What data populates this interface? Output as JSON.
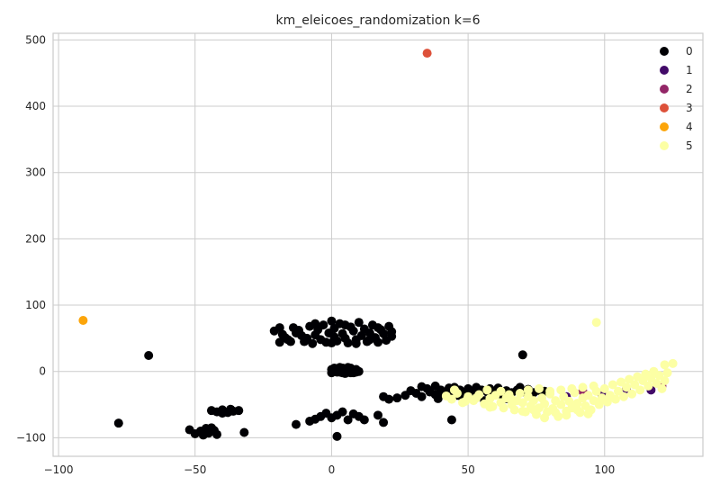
{
  "chart_data": {
    "type": "scatter",
    "title": "km_eleicoes_randomization k=6",
    "xlabel": "",
    "ylabel": "",
    "xlim": [
      -102,
      136
    ],
    "ylim": [
      -128,
      510
    ],
    "x_ticks": [
      -100,
      -50,
      0,
      50,
      100
    ],
    "x_tick_labels": [
      "−100",
      "−50",
      "0",
      "50",
      "100"
    ],
    "y_ticks": [
      -100,
      0,
      100,
      200,
      300,
      400,
      500
    ],
    "y_tick_labels": [
      "−100",
      "0",
      "100",
      "200",
      "300",
      "400",
      "500"
    ],
    "grid": true,
    "legend_position": "top-right",
    "series": [
      {
        "name": "0",
        "color": "#000004",
        "points": [
          [
            -67,
            24
          ],
          [
            70,
            25
          ],
          [
            -78,
            -78
          ],
          [
            2,
            -98
          ],
          [
            44,
            -73
          ],
          [
            -32,
            -92
          ],
          [
            -52,
            -88
          ],
          [
            -50,
            -94
          ],
          [
            -48,
            -90
          ],
          [
            -46,
            -86
          ],
          [
            -45,
            -93
          ],
          [
            -43,
            -89
          ],
          [
            -42,
            -95
          ],
          [
            -44,
            -85
          ],
          [
            -47,
            -96
          ],
          [
            -44,
            -59
          ],
          [
            -42,
            -61
          ],
          [
            -40,
            -58
          ],
          [
            -38,
            -62
          ],
          [
            -36,
            -60
          ],
          [
            -34,
            -59
          ],
          [
            -40,
            -63
          ],
          [
            -37,
            -57
          ],
          [
            -13,
            -80
          ],
          [
            -8,
            -75
          ],
          [
            -6,
            -72
          ],
          [
            -4,
            -68
          ],
          [
            -2,
            -63
          ],
          [
            0,
            -70
          ],
          [
            2,
            -66
          ],
          [
            4,
            -61
          ],
          [
            6,
            -73
          ],
          [
            8,
            -64
          ],
          [
            10,
            -68
          ],
          [
            12,
            -73
          ],
          [
            17,
            -66
          ],
          [
            19,
            -77
          ],
          [
            0,
            3
          ],
          [
            1,
            1
          ],
          [
            2,
            4
          ],
          [
            3,
            -1
          ],
          [
            4,
            2
          ],
          [
            5,
            0
          ],
          [
            6,
            3
          ],
          [
            7,
            -2
          ],
          [
            8,
            1
          ],
          [
            9,
            3
          ],
          [
            2,
            -1
          ],
          [
            4,
            5
          ],
          [
            6,
            -1
          ],
          [
            1,
            5
          ],
          [
            8,
            -2
          ],
          [
            3,
            6
          ],
          [
            5,
            -3
          ],
          [
            7,
            5
          ],
          [
            10,
            0
          ],
          [
            0,
            -2
          ],
          [
            9,
            -1
          ],
          [
            6,
            6
          ],
          [
            2,
            2
          ],
          [
            4,
            -2
          ],
          [
            -21,
            61
          ],
          [
            -19,
            66
          ],
          [
            -18,
            56
          ],
          [
            -17,
            51
          ],
          [
            -16,
            48
          ],
          [
            -15,
            45
          ],
          [
            -13,
            58
          ],
          [
            -12,
            62
          ],
          [
            -11,
            54
          ],
          [
            -10,
            45
          ],
          [
            -9,
            50
          ],
          [
            -8,
            68
          ],
          [
            -7,
            42
          ],
          [
            -6,
            55
          ],
          [
            -5,
            63
          ],
          [
            -4,
            48
          ],
          [
            -3,
            70
          ],
          [
            -2,
            44
          ],
          [
            -1,
            58
          ],
          [
            0,
            76
          ],
          [
            1,
            52
          ],
          [
            1,
            65
          ],
          [
            2,
            46
          ],
          [
            3,
            72
          ],
          [
            4,
            57
          ],
          [
            5,
            50
          ],
          [
            6,
            43
          ],
          [
            7,
            67
          ],
          [
            8,
            61
          ],
          [
            9,
            48
          ],
          [
            10,
            74
          ],
          [
            11,
            54
          ],
          [
            12,
            64
          ],
          [
            13,
            45
          ],
          [
            14,
            58
          ],
          [
            15,
            70
          ],
          [
            16,
            51
          ],
          [
            17,
            44
          ],
          [
            18,
            63
          ],
          [
            19,
            57
          ],
          [
            20,
            47
          ],
          [
            21,
            68
          ],
          [
            22,
            53
          ],
          [
            22,
            60
          ],
          [
            -19,
            44
          ],
          [
            -14,
            66
          ],
          [
            -6,
            72
          ],
          [
            0,
            43
          ],
          [
            5,
            70
          ],
          [
            9,
            42
          ],
          [
            14,
            48
          ],
          [
            17,
            66
          ],
          [
            19,
            -38
          ],
          [
            21,
            -42
          ],
          [
            24,
            -40
          ],
          [
            27,
            -36
          ],
          [
            29,
            -29
          ],
          [
            31,
            -33
          ],
          [
            33,
            -38
          ],
          [
            35,
            -26
          ],
          [
            36,
            -31
          ],
          [
            38,
            -35
          ],
          [
            40,
            -28
          ],
          [
            41,
            -33
          ],
          [
            43,
            -25
          ],
          [
            44,
            -30
          ],
          [
            46,
            -36
          ],
          [
            47,
            -28
          ],
          [
            49,
            -32
          ],
          [
            50,
            -26
          ],
          [
            52,
            -30
          ],
          [
            54,
            -34
          ],
          [
            55,
            -28
          ],
          [
            57,
            -31
          ],
          [
            58,
            -26
          ],
          [
            60,
            -30
          ],
          [
            62,
            -34
          ],
          [
            64,
            -29
          ],
          [
            66,
            -32
          ],
          [
            68,
            -28
          ],
          [
            70,
            -31
          ],
          [
            72,
            -27
          ],
          [
            74,
            -32
          ],
          [
            76,
            -29
          ],
          [
            78,
            -30
          ],
          [
            33,
            -23
          ],
          [
            38,
            -22
          ],
          [
            45,
            -24
          ],
          [
            53,
            -24
          ],
          [
            61,
            -25
          ],
          [
            69,
            -24
          ],
          [
            39,
            -41
          ],
          [
            48,
            -40
          ],
          [
            56,
            -44
          ],
          [
            64,
            -41
          ],
          [
            72,
            -36
          ]
        ]
      },
      {
        "name": "1",
        "color": "#420a68",
        "points": [
          [
            108,
            -26
          ],
          [
            117,
            -28
          ],
          [
            99,
            -35
          ],
          [
            86,
            -38
          ]
        ]
      },
      {
        "name": "2",
        "color": "#932667",
        "points": [
          [
            92,
            -30
          ],
          [
            121,
            -22
          ]
        ]
      },
      {
        "name": "3",
        "color": "#dd513a",
        "points": [
          [
            35,
            480
          ]
        ]
      },
      {
        "name": "4",
        "color": "#fca50a",
        "points": [
          [
            -91,
            77
          ]
        ]
      },
      {
        "name": "5",
        "color": "#fcffa4",
        "points": [
          [
            97,
            74
          ],
          [
            122,
            10
          ],
          [
            125,
            12
          ],
          [
            42,
            -37
          ],
          [
            44,
            -42
          ],
          [
            46,
            -33
          ],
          [
            48,
            -47
          ],
          [
            50,
            -38
          ],
          [
            52,
            -44
          ],
          [
            54,
            -35
          ],
          [
            56,
            -49
          ],
          [
            58,
            -41
          ],
          [
            59,
            -53
          ],
          [
            60,
            -36
          ],
          [
            62,
            -47
          ],
          [
            63,
            -55
          ],
          [
            64,
            -40
          ],
          [
            66,
            -50
          ],
          [
            67,
            -58
          ],
          [
            68,
            -44
          ],
          [
            69,
            -33
          ],
          [
            70,
            -47
          ],
          [
            71,
            -61
          ],
          [
            72,
            -38
          ],
          [
            73,
            -52
          ],
          [
            74,
            -44
          ],
          [
            75,
            -65
          ],
          [
            76,
            -55
          ],
          [
            77,
            -40
          ],
          [
            78,
            -49
          ],
          [
            79,
            -61
          ],
          [
            80,
            -34
          ],
          [
            81,
            -56
          ],
          [
            82,
            -44
          ],
          [
            83,
            -68
          ],
          [
            84,
            -50
          ],
          [
            85,
            -38
          ],
          [
            86,
            -60
          ],
          [
            87,
            -45
          ],
          [
            88,
            -55
          ],
          [
            89,
            -32
          ],
          [
            90,
            -48
          ],
          [
            91,
            -62
          ],
          [
            92,
            -40
          ],
          [
            93,
            -52
          ],
          [
            94,
            -36
          ],
          [
            95,
            -58
          ],
          [
            96,
            -44
          ],
          [
            97,
            -30
          ],
          [
            98,
            -50
          ],
          [
            99,
            -40
          ],
          [
            100,
            -26
          ],
          [
            101,
            -46
          ],
          [
            102,
            -36
          ],
          [
            103,
            -20
          ],
          [
            104,
            -42
          ],
          [
            105,
            -30
          ],
          [
            106,
            -16
          ],
          [
            107,
            -38
          ],
          [
            108,
            -24
          ],
          [
            109,
            -12
          ],
          [
            110,
            -34
          ],
          [
            111,
            -20
          ],
          [
            112,
            -8
          ],
          [
            113,
            -28
          ],
          [
            114,
            -14
          ],
          [
            115,
            -4
          ],
          [
            116,
            -22
          ],
          [
            117,
            -10
          ],
          [
            118,
            0
          ],
          [
            119,
            -18
          ],
          [
            120,
            -6
          ],
          [
            121,
            -26
          ],
          [
            122,
            -14
          ],
          [
            123,
            -2
          ],
          [
            72,
            -28
          ],
          [
            76,
            -26
          ],
          [
            80,
            -30
          ],
          [
            84,
            -28
          ],
          [
            88,
            -26
          ],
          [
            92,
            -24
          ],
          [
            96,
            -22
          ],
          [
            78,
            -70
          ],
          [
            82,
            -62
          ],
          [
            86,
            -66
          ],
          [
            90,
            -58
          ],
          [
            94,
            -64
          ],
          [
            74,
            -58
          ],
          [
            70,
            -60
          ],
          [
            66,
            -42
          ],
          [
            62,
            -30
          ],
          [
            57,
            -28
          ],
          [
            53,
            -40
          ],
          [
            49,
            -45
          ],
          [
            45,
            -28
          ],
          [
            58,
            -54
          ],
          [
            65,
            -35
          ]
        ]
      }
    ]
  }
}
